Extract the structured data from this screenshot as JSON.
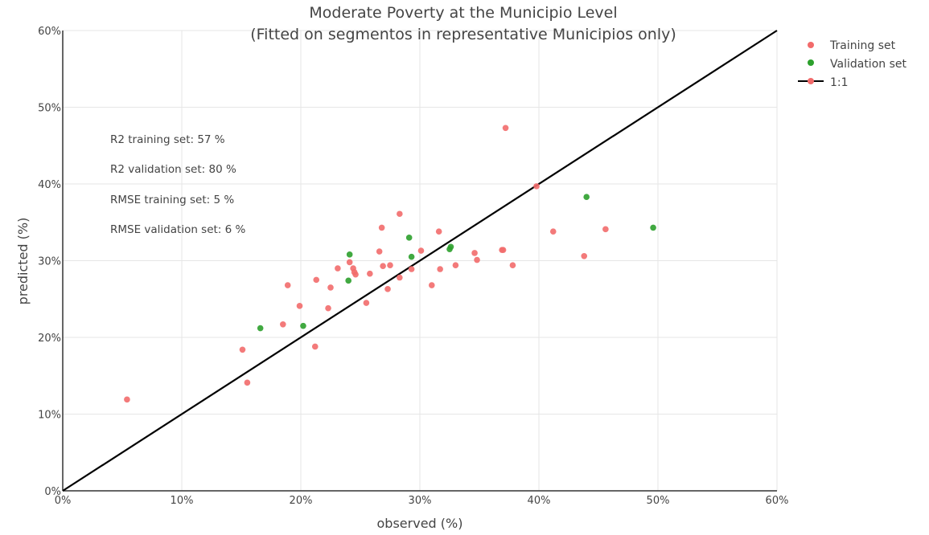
{
  "chart_data": {
    "type": "scatter",
    "title": "Moderate Poverty at the Municipio Level",
    "subtitle": "(Fitted on segmentos in representative Municipios only)",
    "xlabel": "observed (%)",
    "ylabel": "predicted (%)",
    "xlim": [
      0,
      60
    ],
    "ylim": [
      0,
      60
    ],
    "x_ticks": [
      "0%",
      "10%",
      "20%",
      "30%",
      "40%",
      "50%",
      "60%"
    ],
    "y_ticks": [
      "0%",
      "10%",
      "20%",
      "30%",
      "40%",
      "50%",
      "60%"
    ],
    "grid": true,
    "legend_position": "top-right",
    "annotations": [
      "R2 training set: 57 %",
      "R2 validation set: 80 %",
      "RMSE training set: 5 %",
      "RMSE validation set: 6 %"
    ],
    "series": [
      {
        "name": "Training set",
        "color": "#f26b6b",
        "points": [
          [
            5.4,
            11.9
          ],
          [
            15.1,
            18.4
          ],
          [
            15.5,
            14.1
          ],
          [
            18.5,
            21.7
          ],
          [
            18.9,
            26.8
          ],
          [
            19.9,
            24.1
          ],
          [
            21.2,
            18.8
          ],
          [
            21.3,
            27.5
          ],
          [
            22.3,
            23.8
          ],
          [
            22.5,
            26.5
          ],
          [
            23.1,
            29.0
          ],
          [
            24.1,
            29.8
          ],
          [
            24.4,
            29.0
          ],
          [
            24.5,
            28.5
          ],
          [
            24.6,
            28.2
          ],
          [
            25.5,
            24.5
          ],
          [
            25.8,
            28.3
          ],
          [
            26.6,
            31.2
          ],
          [
            26.8,
            34.3
          ],
          [
            26.9,
            29.3
          ],
          [
            27.3,
            26.3
          ],
          [
            27.5,
            29.4
          ],
          [
            28.3,
            36.1
          ],
          [
            28.3,
            27.8
          ],
          [
            29.3,
            28.9
          ],
          [
            30.1,
            31.3
          ],
          [
            31.0,
            26.8
          ],
          [
            31.6,
            33.8
          ],
          [
            31.7,
            28.9
          ],
          [
            33.0,
            29.4
          ],
          [
            34.6,
            31.0
          ],
          [
            34.8,
            30.1
          ],
          [
            36.9,
            31.4
          ],
          [
            37.0,
            31.4
          ],
          [
            37.2,
            47.3
          ],
          [
            37.8,
            29.4
          ],
          [
            39.8,
            39.7
          ],
          [
            41.2,
            33.8
          ],
          [
            43.8,
            30.6
          ],
          [
            45.6,
            34.1
          ]
        ]
      },
      {
        "name": "Validation set",
        "color": "#2ca02c",
        "points": [
          [
            16.6,
            21.2
          ],
          [
            20.2,
            21.5
          ],
          [
            24.0,
            27.4
          ],
          [
            24.1,
            30.8
          ],
          [
            29.1,
            33.0
          ],
          [
            29.3,
            30.5
          ],
          [
            32.5,
            31.5
          ],
          [
            32.6,
            31.8
          ],
          [
            44.0,
            38.3
          ],
          [
            49.6,
            34.3
          ]
        ]
      },
      {
        "name": "1:1",
        "color": "#000000",
        "x": [
          0,
          60
        ],
        "y": [
          0,
          60
        ]
      }
    ]
  }
}
